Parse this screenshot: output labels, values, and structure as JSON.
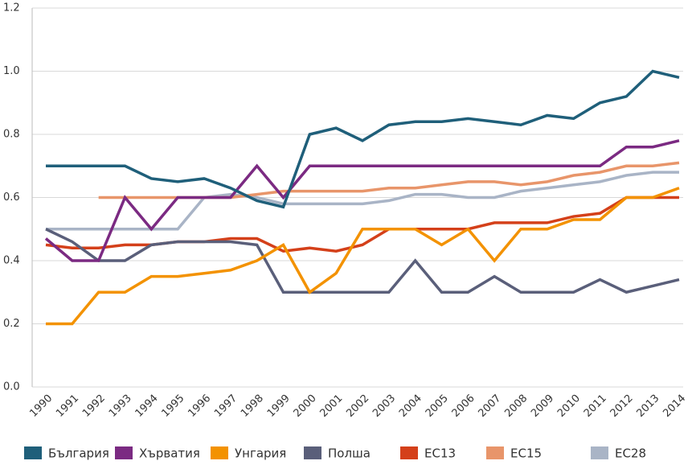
{
  "chart_data": {
    "type": "line",
    "categories": [
      "1990",
      "1991",
      "1992",
      "1993",
      "1994",
      "1995",
      "1996",
      "1997",
      "1998",
      "1999",
      "2000",
      "2001",
      "2002",
      "2003",
      "2004",
      "2005",
      "2006",
      "2007",
      "2008",
      "2009",
      "2010",
      "2011",
      "2012",
      "2013",
      "2014"
    ],
    "series": [
      {
        "name": "България",
        "color": "#1f5f7a",
        "values": [
          0.7,
          0.7,
          0.7,
          0.7,
          0.66,
          0.65,
          0.66,
          0.63,
          0.59,
          0.57,
          0.8,
          0.82,
          0.78,
          0.83,
          0.84,
          0.84,
          0.85,
          0.84,
          0.83,
          0.86,
          0.85,
          0.9,
          0.92,
          1.0,
          0.98
        ]
      },
      {
        "name": "Хърватия",
        "color": "#7b2a82",
        "values": [
          0.47,
          0.4,
          0.4,
          0.6,
          0.5,
          0.6,
          0.6,
          0.6,
          0.7,
          0.6,
          0.7,
          0.7,
          0.7,
          0.7,
          0.7,
          0.7,
          0.7,
          0.7,
          0.7,
          0.7,
          0.7,
          0.7,
          0.76,
          0.76,
          0.78
        ]
      },
      {
        "name": "Унгария",
        "color": "#f39200",
        "values": [
          0.2,
          0.2,
          0.3,
          0.3,
          0.35,
          0.35,
          0.36,
          0.37,
          0.4,
          0.45,
          0.3,
          0.36,
          0.5,
          0.5,
          0.5,
          0.45,
          0.5,
          0.4,
          0.5,
          0.5,
          0.53,
          0.53,
          0.6,
          0.6,
          0.63
        ]
      },
      {
        "name": "Полша",
        "color": "#5a5f7a",
        "values": [
          0.5,
          0.46,
          0.4,
          0.4,
          0.45,
          0.46,
          0.46,
          0.46,
          0.45,
          0.3,
          0.3,
          0.3,
          0.3,
          0.3,
          0.4,
          0.3,
          0.3,
          0.35,
          0.3,
          0.3,
          0.3,
          0.34,
          0.3,
          0.32,
          0.34
        ]
      },
      {
        "name": "ЕС13",
        "color": "#d4401a",
        "values": [
          0.45,
          0.44,
          0.44,
          0.45,
          0.45,
          0.46,
          0.46,
          0.47,
          0.47,
          0.43,
          0.44,
          0.43,
          0.45,
          0.5,
          0.5,
          0.5,
          0.5,
          0.52,
          0.52,
          0.52,
          0.54,
          0.55,
          0.6,
          0.6,
          0.6
        ]
      },
      {
        "name": "ЕС15",
        "color": "#e8956a",
        "values": [
          null,
          null,
          0.6,
          0.6,
          0.6,
          0.6,
          0.6,
          0.6,
          0.61,
          0.62,
          0.62,
          0.62,
          0.62,
          0.63,
          0.63,
          0.64,
          0.65,
          0.65,
          0.64,
          0.65,
          0.67,
          0.68,
          0.7,
          0.7,
          0.71
        ]
      },
      {
        "name": "ЕС28",
        "color": "#a9b4c6",
        "values": [
          0.5,
          0.5,
          0.5,
          0.5,
          0.5,
          0.5,
          0.6,
          0.61,
          0.6,
          0.58,
          0.58,
          0.58,
          0.58,
          0.59,
          0.61,
          0.61,
          0.6,
          0.6,
          0.62,
          0.63,
          0.64,
          0.65,
          0.67,
          0.68,
          0.68
        ]
      }
    ],
    "ylim": [
      0,
      1.2
    ],
    "yticks": [
      {
        "value": 0,
        "label": "0.0"
      },
      0.2,
      0.4,
      0.6,
      0.8,
      {
        "value": 1,
        "label": "1.0"
      },
      1.2
    ],
    "grid": true,
    "legend": "bottom"
  }
}
